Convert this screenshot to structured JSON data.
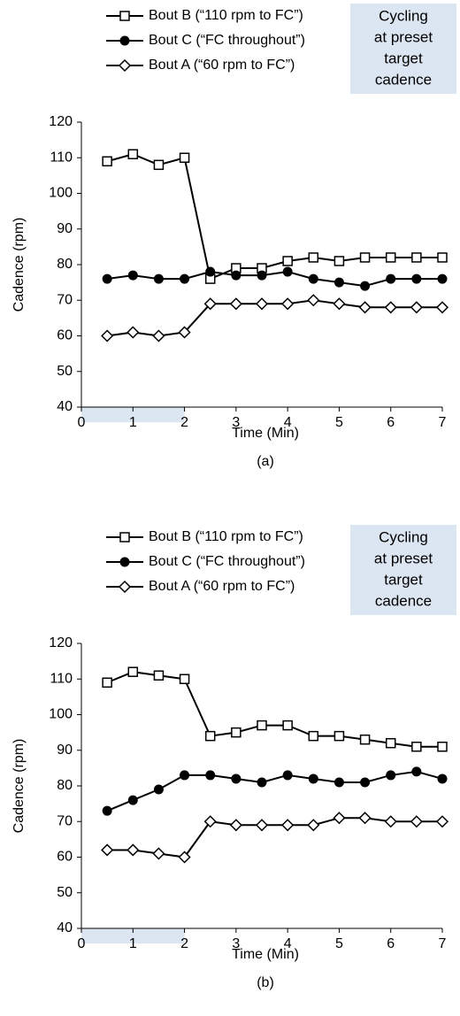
{
  "chart_data": [
    {
      "type": "line",
      "caption": "(a)",
      "x_label": "Time (Min)",
      "y_label": "Cadence (rpm)",
      "annotation": [
        "Cycling",
        "at preset",
        "target",
        "cadence"
      ],
      "annotation_color": "#dce6f2",
      "shade_x": [
        0,
        2
      ],
      "shade_color": "#dce6f2",
      "x": [
        0.5,
        1,
        1.5,
        2,
        2.5,
        3,
        3.5,
        4,
        4.5,
        5,
        5.5,
        6,
        6.5,
        7
      ],
      "xlim": [
        0,
        7
      ],
      "xticks": [
        0,
        1,
        2,
        3,
        4,
        5,
        6,
        7
      ],
      "ylim": [
        40,
        120
      ],
      "yticks": [
        40,
        50,
        60,
        70,
        80,
        90,
        100,
        110,
        120
      ],
      "series": [
        {
          "name": "Bout B (“110 rpm to FC”)",
          "color": "#000000",
          "marker": "square",
          "values": [
            109,
            111,
            108,
            110,
            76,
            79,
            79,
            81,
            82,
            81,
            82,
            82,
            82,
            82
          ]
        },
        {
          "name": "Bout C (“FC throughout”)",
          "color": "#000000",
          "marker": "circle",
          "values": [
            76,
            77,
            76,
            76,
            78,
            77,
            77,
            78,
            76,
            75,
            74,
            76,
            76,
            76
          ]
        },
        {
          "name": "Bout A (“60 rpm to FC”)",
          "color": "#000000",
          "marker": "diamond",
          "values": [
            60,
            61,
            60,
            61,
            69,
            69,
            69,
            69,
            70,
            69,
            68,
            68,
            68,
            68
          ]
        }
      ]
    },
    {
      "type": "line",
      "caption": "(b)",
      "x_label": "Time (Min)",
      "y_label": "Cadence (rpm)",
      "annotation": [
        "Cycling",
        "at preset",
        "target",
        "cadence"
      ],
      "annotation_color": "#dce6f2",
      "shade_x": [
        0,
        2
      ],
      "shade_color": "#dce6f2",
      "x": [
        0.5,
        1,
        1.5,
        2,
        2.5,
        3,
        3.5,
        4,
        4.5,
        5,
        5.5,
        6,
        6.5,
        7
      ],
      "xlim": [
        0,
        7
      ],
      "xticks": [
        0,
        1,
        2,
        3,
        4,
        5,
        6,
        7
      ],
      "ylim": [
        40,
        120
      ],
      "yticks": [
        40,
        50,
        60,
        70,
        80,
        90,
        100,
        110,
        120
      ],
      "series": [
        {
          "name": "Bout B (“110 rpm to FC”)",
          "color": "#000000",
          "marker": "square",
          "values": [
            109,
            112,
            111,
            110,
            94,
            95,
            97,
            97,
            94,
            94,
            93,
            92,
            91,
            91
          ]
        },
        {
          "name": "Bout C (“FC throughout”)",
          "color": "#000000",
          "marker": "circle",
          "values": [
            73,
            76,
            79,
            83,
            83,
            82,
            81,
            83,
            82,
            81,
            81,
            83,
            84,
            82
          ]
        },
        {
          "name": "Bout A (“60 rpm to FC”)",
          "color": "#000000",
          "marker": "diamond",
          "values": [
            62,
            62,
            61,
            60,
            70,
            69,
            69,
            69,
            69,
            71,
            71,
            70,
            70,
            70
          ]
        }
      ]
    }
  ]
}
